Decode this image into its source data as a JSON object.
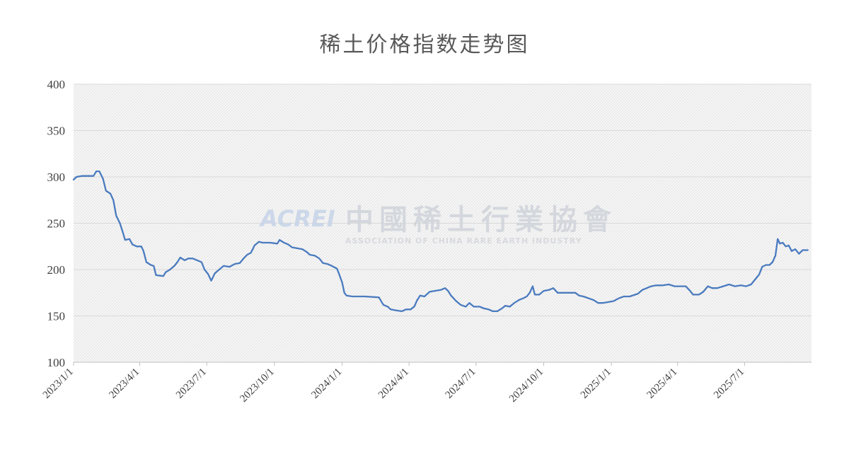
{
  "chart_data": {
    "type": "line",
    "title": "稀土价格指数走势图",
    "xlabel": "",
    "ylabel": "",
    "ylim": [
      100,
      400
    ],
    "yticks": [
      "100",
      "150",
      "200",
      "250",
      "300",
      "350",
      "400"
    ],
    "x_range": [
      "2023-01-01",
      "2025-09-30"
    ],
    "xticks": [
      {
        "date": "2023-01-01",
        "label": "2023/1/1"
      },
      {
        "date": "2023-04-01",
        "label": "2023/4/1"
      },
      {
        "date": "2023-07-01",
        "label": "2023/7/1"
      },
      {
        "date": "2023-10-01",
        "label": "2023/10/1"
      },
      {
        "date": "2024-01-01",
        "label": "2024/1/1"
      },
      {
        "date": "2024-04-01",
        "label": "2024/4/1"
      },
      {
        "date": "2024-07-01",
        "label": "2024/7/1"
      },
      {
        "date": "2024-10-01",
        "label": "2024/10/1"
      },
      {
        "date": "2025-01-01",
        "label": "2025/1/1"
      },
      {
        "date": "2025-04-01",
        "label": "2025/4/1"
      },
      {
        "date": "2025-07-01",
        "label": "2025/7/1"
      }
    ],
    "grid": true,
    "line_color": "#4a7bbf",
    "series": [
      {
        "points": [
          [
            "2023-01-01",
            297
          ],
          [
            "2023-01-05",
            300
          ],
          [
            "2023-01-12",
            301
          ],
          [
            "2023-01-20",
            301
          ],
          [
            "2023-01-28",
            301
          ],
          [
            "2023-02-01",
            306
          ],
          [
            "2023-02-05",
            306
          ],
          [
            "2023-02-10",
            298
          ],
          [
            "2023-02-14",
            285
          ],
          [
            "2023-02-20",
            282
          ],
          [
            "2023-02-24",
            275
          ],
          [
            "2023-02-28",
            258
          ],
          [
            "2023-03-05",
            250
          ],
          [
            "2023-03-09",
            240
          ],
          [
            "2023-03-12",
            232
          ],
          [
            "2023-03-18",
            233
          ],
          [
            "2023-03-22",
            227
          ],
          [
            "2023-03-28",
            225
          ],
          [
            "2023-04-03",
            225
          ],
          [
            "2023-04-06",
            220
          ],
          [
            "2023-04-10",
            208
          ],
          [
            "2023-04-16",
            205
          ],
          [
            "2023-04-20",
            204
          ],
          [
            "2023-04-23",
            194
          ],
          [
            "2023-05-03",
            193
          ],
          [
            "2023-05-06",
            197
          ],
          [
            "2023-05-12",
            200
          ],
          [
            "2023-05-18",
            204
          ],
          [
            "2023-05-22",
            208
          ],
          [
            "2023-05-26",
            213
          ],
          [
            "2023-06-01",
            210
          ],
          [
            "2023-06-06",
            212
          ],
          [
            "2023-06-12",
            212
          ],
          [
            "2023-06-18",
            210
          ],
          [
            "2023-06-24",
            208
          ],
          [
            "2023-06-28",
            200
          ],
          [
            "2023-07-03",
            195
          ],
          [
            "2023-07-07",
            188
          ],
          [
            "2023-07-12",
            196
          ],
          [
            "2023-07-18",
            200
          ],
          [
            "2023-07-24",
            204
          ],
          [
            "2023-08-01",
            203
          ],
          [
            "2023-08-08",
            206
          ],
          [
            "2023-08-15",
            207
          ],
          [
            "2023-08-20",
            212
          ],
          [
            "2023-08-25",
            216
          ],
          [
            "2023-08-30",
            218
          ],
          [
            "2023-09-04",
            226
          ],
          [
            "2023-09-10",
            230
          ],
          [
            "2023-09-15",
            229
          ],
          [
            "2023-09-25",
            229
          ],
          [
            "2023-10-05",
            228
          ],
          [
            "2023-10-08",
            232
          ],
          [
            "2023-10-14",
            229
          ],
          [
            "2023-10-20",
            227
          ],
          [
            "2023-10-25",
            224
          ],
          [
            "2023-11-01",
            223
          ],
          [
            "2023-11-08",
            222
          ],
          [
            "2023-11-14",
            219
          ],
          [
            "2023-11-18",
            216
          ],
          [
            "2023-11-25",
            215
          ],
          [
            "2023-12-01",
            212
          ],
          [
            "2023-12-06",
            207
          ],
          [
            "2023-12-12",
            206
          ],
          [
            "2023-12-18",
            204
          ],
          [
            "2023-12-25",
            201
          ],
          [
            "2023-12-28",
            195
          ],
          [
            "2024-01-01",
            186
          ],
          [
            "2024-01-04",
            175
          ],
          [
            "2024-01-07",
            172
          ],
          [
            "2024-01-15",
            171
          ],
          [
            "2024-02-01",
            171
          ],
          [
            "2024-02-20",
            170
          ],
          [
            "2024-02-26",
            162
          ],
          [
            "2024-03-03",
            160
          ],
          [
            "2024-03-07",
            157
          ],
          [
            "2024-03-14",
            156
          ],
          [
            "2024-03-22",
            155
          ],
          [
            "2024-03-28",
            157
          ],
          [
            "2024-04-03",
            157
          ],
          [
            "2024-04-08",
            160
          ],
          [
            "2024-04-12",
            167
          ],
          [
            "2024-04-16",
            172
          ],
          [
            "2024-04-22",
            171
          ],
          [
            "2024-04-29",
            176
          ],
          [
            "2024-05-06",
            177
          ],
          [
            "2024-05-14",
            178
          ],
          [
            "2024-05-20",
            180
          ],
          [
            "2024-05-24",
            177
          ],
          [
            "2024-05-28",
            172
          ],
          [
            "2024-06-04",
            166
          ],
          [
            "2024-06-10",
            162
          ],
          [
            "2024-06-17",
            160
          ],
          [
            "2024-06-22",
            164
          ],
          [
            "2024-06-28",
            160
          ],
          [
            "2024-07-06",
            160
          ],
          [
            "2024-07-12",
            158
          ],
          [
            "2024-07-18",
            157
          ],
          [
            "2024-07-24",
            155
          ],
          [
            "2024-07-30",
            155
          ],
          [
            "2024-08-05",
            158
          ],
          [
            "2024-08-10",
            161
          ],
          [
            "2024-08-16",
            160
          ],
          [
            "2024-08-22",
            164
          ],
          [
            "2024-08-28",
            167
          ],
          [
            "2024-09-03",
            169
          ],
          [
            "2024-09-08",
            171
          ],
          [
            "2024-09-12",
            175
          ],
          [
            "2024-09-16",
            182
          ],
          [
            "2024-09-19",
            173
          ],
          [
            "2024-09-25",
            173
          ],
          [
            "2024-10-01",
            177
          ],
          [
            "2024-10-08",
            178
          ],
          [
            "2024-10-14",
            180
          ],
          [
            "2024-10-20",
            175
          ],
          [
            "2024-10-28",
            175
          ],
          [
            "2024-11-05",
            175
          ],
          [
            "2024-11-13",
            175
          ],
          [
            "2024-11-18",
            172
          ],
          [
            "2024-11-24",
            171
          ],
          [
            "2024-12-01",
            169
          ],
          [
            "2024-12-08",
            167
          ],
          [
            "2024-12-14",
            164
          ],
          [
            "2024-12-20",
            164
          ],
          [
            "2024-12-28",
            165
          ],
          [
            "2025-01-04",
            166
          ],
          [
            "2025-01-11",
            169
          ],
          [
            "2025-01-18",
            171
          ],
          [
            "2025-01-26",
            171
          ],
          [
            "2025-02-06",
            174
          ],
          [
            "2025-02-12",
            178
          ],
          [
            "2025-02-18",
            180
          ],
          [
            "2025-02-24",
            182
          ],
          [
            "2025-03-03",
            183
          ],
          [
            "2025-03-12",
            183
          ],
          [
            "2025-03-20",
            184
          ],
          [
            "2025-03-28",
            182
          ],
          [
            "2025-04-05",
            182
          ],
          [
            "2025-04-12",
            182
          ],
          [
            "2025-04-18",
            177
          ],
          [
            "2025-04-22",
            173
          ],
          [
            "2025-04-30",
            173
          ],
          [
            "2025-05-06",
            176
          ],
          [
            "2025-05-12",
            182
          ],
          [
            "2025-05-18",
            180
          ],
          [
            "2025-05-25",
            180
          ],
          [
            "2025-06-02",
            182
          ],
          [
            "2025-06-10",
            184
          ],
          [
            "2025-06-18",
            182
          ],
          [
            "2025-06-26",
            183
          ],
          [
            "2025-07-03",
            182
          ],
          [
            "2025-07-10",
            184
          ],
          [
            "2025-07-16",
            190
          ],
          [
            "2025-07-21",
            195
          ],
          [
            "2025-07-25",
            203
          ],
          [
            "2025-07-30",
            205
          ],
          [
            "2025-08-04",
            205
          ],
          [
            "2025-08-08",
            208
          ],
          [
            "2025-08-12",
            215
          ],
          [
            "2025-08-15",
            233
          ],
          [
            "2025-08-18",
            228
          ],
          [
            "2025-08-22",
            229
          ],
          [
            "2025-08-26",
            225
          ],
          [
            "2025-08-30",
            226
          ],
          [
            "2025-09-03",
            220
          ],
          [
            "2025-09-08",
            222
          ],
          [
            "2025-09-13",
            217
          ],
          [
            "2025-09-18",
            221
          ],
          [
            "2025-09-25",
            221
          ]
        ]
      }
    ]
  },
  "watermark": {
    "logo": "ACREI",
    "name_cn": "中國稀土行業協會",
    "name_en": "ASSOCIATION OF CHINA RARE EARTH INDUSTRY"
  }
}
